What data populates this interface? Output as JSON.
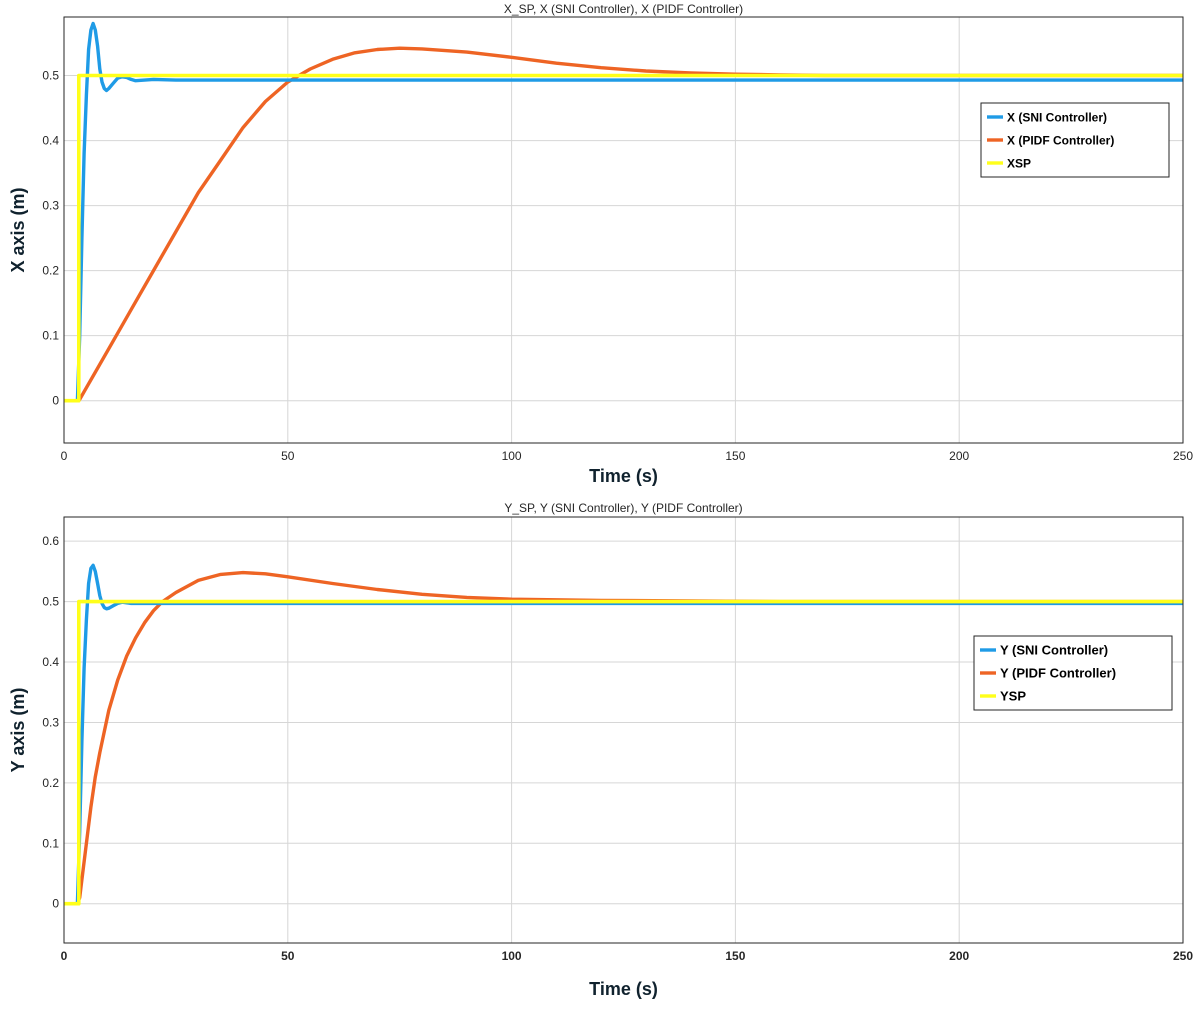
{
  "chart_data": [
    {
      "type": "line",
      "title": "X_SP, X (SNI Controller), X (PIDF Controller)",
      "xlabel": "Time (s)",
      "ylabel": "X axis (m)",
      "xlim": [
        0,
        250
      ],
      "ylim": [
        -0.065,
        0.59
      ],
      "xticks": [
        0,
        50,
        100,
        150,
        200,
        250
      ],
      "yticks": [
        0,
        0.1,
        0.2,
        0.3,
        0.4,
        0.5
      ],
      "ytick_labels": [
        "0",
        "0.1",
        "0.2",
        "0.3",
        "0.4",
        "0.5"
      ],
      "grid": true,
      "legend_position": "upper-right",
      "series": [
        {
          "name": "X (SNI Controller)",
          "color": "#1f9be6",
          "x": [
            0,
            3,
            3.5,
            4,
            4.5,
            5,
            5.5,
            6,
            6.5,
            7,
            7.5,
            8,
            8.5,
            9,
            9.5,
            10,
            11,
            12,
            13,
            14,
            15,
            16,
            18,
            20,
            25,
            30,
            250
          ],
          "y": [
            0,
            0,
            0.1,
            0.25,
            0.38,
            0.47,
            0.54,
            0.57,
            0.58,
            0.57,
            0.545,
            0.51,
            0.49,
            0.48,
            0.477,
            0.48,
            0.488,
            0.496,
            0.498,
            0.497,
            0.494,
            0.492,
            0.493,
            0.494,
            0.493,
            0.493,
            0.493
          ]
        },
        {
          "name": "X (PIDF Controller)",
          "color": "#ee6424",
          "x": [
            0,
            3,
            3.5,
            5,
            10,
            15,
            20,
            25,
            30,
            35,
            40,
            45,
            50,
            55,
            60,
            65,
            70,
            75,
            80,
            90,
            100,
            110,
            120,
            130,
            140,
            150,
            160,
            170,
            180,
            200,
            225,
            250
          ],
          "y": [
            0,
            0,
            0.002,
            0.02,
            0.08,
            0.14,
            0.2,
            0.26,
            0.32,
            0.37,
            0.42,
            0.46,
            0.49,
            0.51,
            0.525,
            0.535,
            0.54,
            0.542,
            0.541,
            0.536,
            0.528,
            0.519,
            0.512,
            0.507,
            0.504,
            0.502,
            0.501,
            0.5,
            0.5,
            0.5,
            0.5,
            0.5
          ]
        },
        {
          "name": "XSP",
          "color": "#ffff1a",
          "x": [
            0,
            3.3,
            3.3,
            250
          ],
          "y": [
            0,
            0,
            0.5,
            0.5
          ]
        }
      ]
    },
    {
      "type": "line",
      "title": "Y_SP, Y (SNI Controller), Y (PIDF Controller)",
      "xlabel": "Time (s)",
      "ylabel": "Y axis (m)",
      "xlim": [
        0,
        250
      ],
      "ylim": [
        -0.065,
        0.64
      ],
      "xticks": [
        0,
        50,
        100,
        150,
        200,
        250
      ],
      "yticks": [
        0,
        0.1,
        0.2,
        0.3,
        0.4,
        0.5,
        0.6
      ],
      "ytick_labels": [
        "0",
        "0.1",
        "0.2",
        "0.3",
        "0.4",
        "0.5",
        "0.6"
      ],
      "grid": true,
      "legend_position": "right",
      "series": [
        {
          "name": "Y (SNI Controller)",
          "color": "#1f9be6",
          "x": [
            0,
            3,
            3.5,
            4,
            4.5,
            5,
            5.5,
            6,
            6.5,
            7,
            7.5,
            8,
            8.5,
            9,
            9.5,
            10,
            11,
            12,
            13,
            14,
            15,
            18,
            20,
            25,
            250
          ],
          "y": [
            0,
            0,
            0.12,
            0.27,
            0.39,
            0.47,
            0.53,
            0.555,
            0.56,
            0.55,
            0.53,
            0.51,
            0.497,
            0.49,
            0.488,
            0.489,
            0.493,
            0.497,
            0.499,
            0.498,
            0.497,
            0.497,
            0.497,
            0.497,
            0.497
          ]
        },
        {
          "name": "Y (PIDF Controller)",
          "color": "#ee6424",
          "x": [
            0,
            3,
            3.5,
            4,
            5,
            6,
            7,
            8,
            10,
            12,
            14,
            16,
            18,
            20,
            22,
            25,
            30,
            35,
            40,
            45,
            50,
            60,
            70,
            80,
            90,
            100,
            120,
            140,
            160,
            200,
            250
          ],
          "y": [
            0,
            0,
            0.01,
            0.04,
            0.1,
            0.16,
            0.21,
            0.25,
            0.32,
            0.37,
            0.41,
            0.44,
            0.465,
            0.485,
            0.5,
            0.515,
            0.535,
            0.545,
            0.548,
            0.546,
            0.541,
            0.53,
            0.52,
            0.512,
            0.507,
            0.504,
            0.502,
            0.501,
            0.5,
            0.5,
            0.5
          ]
        },
        {
          "name": "YSP",
          "color": "#ffff1a",
          "x": [
            0,
            3.3,
            3.3,
            250
          ],
          "y": [
            0,
            0,
            0.5,
            0.5
          ]
        }
      ]
    }
  ]
}
